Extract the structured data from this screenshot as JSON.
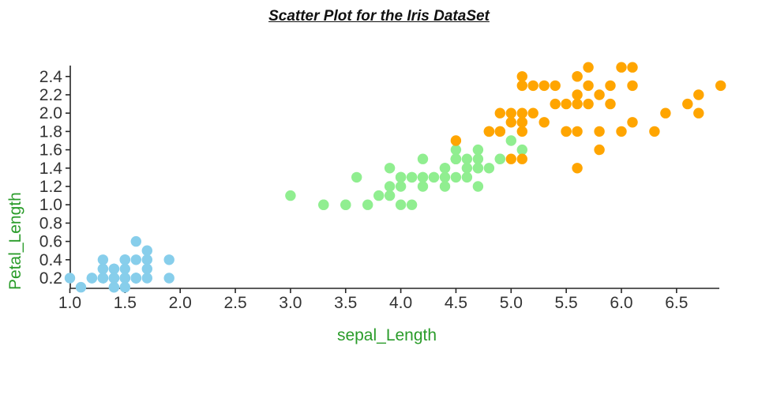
{
  "page": {
    "background": "#ffffff"
  },
  "colors": {
    "axis_line": "#262626",
    "tick_label": "#333333",
    "axis_title_green": "#2a9c2a",
    "title_text": "#111111",
    "series_blue": "#87CEEB",
    "series_green": "#90EE90",
    "series_orange": "#FFA500"
  },
  "chart_data": {
    "type": "scatter",
    "title": "Scatter Plot for the Iris DataSet",
    "xlabel": "sepal_Length",
    "ylabel": "Petal_Length",
    "xlim": [
      1.0,
      6.9
    ],
    "ylim": [
      0.1,
      2.51
    ],
    "grid": false,
    "legend": "none",
    "x_tick_labels": [
      "1.0",
      "1.5",
      "2.0",
      "2.5",
      "3.0",
      "3.5",
      "4.0",
      "4.5",
      "5.0",
      "5.5",
      "6.0",
      "6.5"
    ],
    "y_tick_labels": [
      "0.2",
      "0.4",
      "0.6",
      "0.8",
      "1.0",
      "1.2",
      "1.4",
      "1.6",
      "1.8",
      "2.0",
      "2.2",
      "2.4"
    ],
    "series": [
      {
        "name": "series-blue",
        "color": "#87CEEB",
        "points": [
          [
            1.4,
            0.2
          ],
          [
            1.4,
            0.2
          ],
          [
            1.3,
            0.2
          ],
          [
            1.5,
            0.2
          ],
          [
            1.4,
            0.2
          ],
          [
            1.7,
            0.4
          ],
          [
            1.4,
            0.3
          ],
          [
            1.5,
            0.2
          ],
          [
            1.4,
            0.2
          ],
          [
            1.5,
            0.1
          ],
          [
            1.5,
            0.2
          ],
          [
            1.6,
            0.2
          ],
          [
            1.4,
            0.1
          ],
          [
            1.1,
            0.1
          ],
          [
            1.2,
            0.2
          ],
          [
            1.5,
            0.4
          ],
          [
            1.3,
            0.4
          ],
          [
            1.4,
            0.3
          ],
          [
            1.7,
            0.3
          ],
          [
            1.5,
            0.3
          ],
          [
            1.7,
            0.2
          ],
          [
            1.5,
            0.4
          ],
          [
            1.0,
            0.2
          ],
          [
            1.7,
            0.5
          ],
          [
            1.9,
            0.2
          ],
          [
            1.6,
            0.2
          ],
          [
            1.6,
            0.4
          ],
          [
            1.5,
            0.2
          ],
          [
            1.4,
            0.2
          ],
          [
            1.6,
            0.2
          ],
          [
            1.6,
            0.2
          ],
          [
            1.5,
            0.4
          ],
          [
            1.5,
            0.1
          ],
          [
            1.4,
            0.2
          ],
          [
            1.5,
            0.2
          ],
          [
            1.2,
            0.2
          ],
          [
            1.3,
            0.2
          ],
          [
            1.4,
            0.1
          ],
          [
            1.3,
            0.2
          ],
          [
            1.5,
            0.2
          ],
          [
            1.3,
            0.3
          ],
          [
            1.3,
            0.3
          ],
          [
            1.3,
            0.2
          ],
          [
            1.6,
            0.6
          ],
          [
            1.9,
            0.4
          ],
          [
            1.4,
            0.3
          ],
          [
            1.6,
            0.2
          ],
          [
            1.4,
            0.2
          ],
          [
            1.5,
            0.2
          ],
          [
            1.4,
            0.2
          ]
        ]
      },
      {
        "name": "series-green",
        "color": "#90EE90",
        "points": [
          [
            4.7,
            1.4
          ],
          [
            4.5,
            1.5
          ],
          [
            4.9,
            1.5
          ],
          [
            4.0,
            1.3
          ],
          [
            4.6,
            1.5
          ],
          [
            4.5,
            1.3
          ],
          [
            4.7,
            1.6
          ],
          [
            3.3,
            1.0
          ],
          [
            4.6,
            1.3
          ],
          [
            3.9,
            1.4
          ],
          [
            3.5,
            1.0
          ],
          [
            4.2,
            1.5
          ],
          [
            4.0,
            1.0
          ],
          [
            4.7,
            1.4
          ],
          [
            3.6,
            1.3
          ],
          [
            4.4,
            1.4
          ],
          [
            4.5,
            1.5
          ],
          [
            4.1,
            1.0
          ],
          [
            4.5,
            1.5
          ],
          [
            3.9,
            1.1
          ],
          [
            4.8,
            1.8
          ],
          [
            4.0,
            1.3
          ],
          [
            4.9,
            1.5
          ],
          [
            4.7,
            1.2
          ],
          [
            4.3,
            1.3
          ],
          [
            4.4,
            1.4
          ],
          [
            4.8,
            1.4
          ],
          [
            5.0,
            1.7
          ],
          [
            4.5,
            1.5
          ],
          [
            3.5,
            1.0
          ],
          [
            3.8,
            1.1
          ],
          [
            3.7,
            1.0
          ],
          [
            3.9,
            1.2
          ],
          [
            5.1,
            1.6
          ],
          [
            4.5,
            1.5
          ],
          [
            4.5,
            1.6
          ],
          [
            4.7,
            1.5
          ],
          [
            4.4,
            1.3
          ],
          [
            4.1,
            1.3
          ],
          [
            4.0,
            1.3
          ],
          [
            4.4,
            1.2
          ],
          [
            4.6,
            1.4
          ],
          [
            4.0,
            1.2
          ],
          [
            3.3,
            1.0
          ],
          [
            4.2,
            1.3
          ],
          [
            4.2,
            1.2
          ],
          [
            4.2,
            1.3
          ],
          [
            4.3,
            1.3
          ],
          [
            3.0,
            1.1
          ],
          [
            4.1,
            1.3
          ]
        ]
      },
      {
        "name": "series-orange",
        "color": "#FFA500",
        "points": [
          [
            6.0,
            2.5
          ],
          [
            5.1,
            1.9
          ],
          [
            5.9,
            2.1
          ],
          [
            5.6,
            1.8
          ],
          [
            5.8,
            2.2
          ],
          [
            6.6,
            2.1
          ],
          [
            4.5,
            1.7
          ],
          [
            6.3,
            1.8
          ],
          [
            5.8,
            1.8
          ],
          [
            6.1,
            2.5
          ],
          [
            5.1,
            2.0
          ],
          [
            5.3,
            1.9
          ],
          [
            5.5,
            2.1
          ],
          [
            5.0,
            2.0
          ],
          [
            5.1,
            2.4
          ],
          [
            5.3,
            2.3
          ],
          [
            5.5,
            1.8
          ],
          [
            6.7,
            2.2
          ],
          [
            6.9,
            2.3
          ],
          [
            5.0,
            1.5
          ],
          [
            5.7,
            2.3
          ],
          [
            4.9,
            2.0
          ],
          [
            6.7,
            2.0
          ],
          [
            4.9,
            1.8
          ],
          [
            5.7,
            2.1
          ],
          [
            6.0,
            1.8
          ],
          [
            4.8,
            1.8
          ],
          [
            4.9,
            1.8
          ],
          [
            5.6,
            2.1
          ],
          [
            5.8,
            1.6
          ],
          [
            6.1,
            1.9
          ],
          [
            6.4,
            2.0
          ],
          [
            5.6,
            2.2
          ],
          [
            5.1,
            1.5
          ],
          [
            5.6,
            1.4
          ],
          [
            6.1,
            2.3
          ],
          [
            5.6,
            2.4
          ],
          [
            5.5,
            1.8
          ],
          [
            4.8,
            1.8
          ],
          [
            5.4,
            2.1
          ],
          [
            5.6,
            2.4
          ],
          [
            5.1,
            2.3
          ],
          [
            5.1,
            1.9
          ],
          [
            5.9,
            2.3
          ],
          [
            5.7,
            2.5
          ],
          [
            5.2,
            2.3
          ],
          [
            5.0,
            1.9
          ],
          [
            5.2,
            2.0
          ],
          [
            5.4,
            2.3
          ],
          [
            5.1,
            1.8
          ]
        ]
      }
    ]
  }
}
